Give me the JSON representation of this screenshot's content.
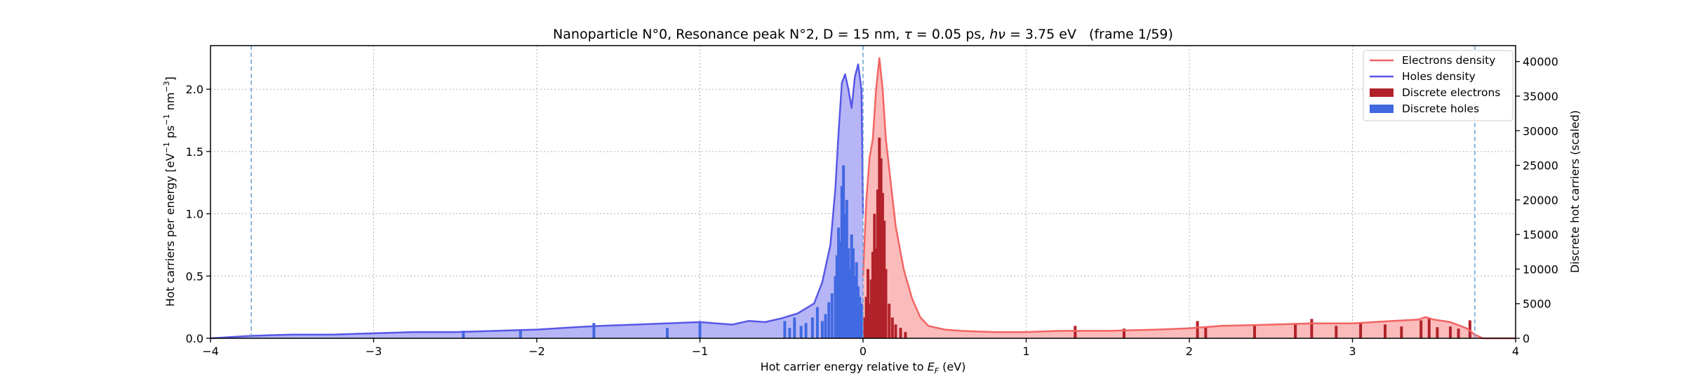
{
  "chart_data": {
    "type": "area",
    "title_parts": [
      "Nanoparticle N°0, Resonance peak N°2, D = 15 nm, ",
      "τ",
      " = 0.05 ps, ",
      "hν",
      " = 3.75 eV   (frame 1/59)"
    ],
    "xlabel_parts": [
      "Hot carrier energy relative to ",
      "E",
      "F",
      " (eV)"
    ],
    "ylabel_parts": [
      "Hot carriers per energy [eV",
      "−1",
      " ps",
      "−1",
      " nm",
      "−3",
      "]"
    ],
    "y2label": "Discrete hot carriers (scaled)",
    "xlim": [
      -4,
      4
    ],
    "ylim": [
      0,
      2.35
    ],
    "y2lim": [
      0,
      42300
    ],
    "xticks": [
      "−4",
      "−3",
      "−2",
      "−1",
      "0",
      "1",
      "2",
      "3",
      "4"
    ],
    "xtick_values": [
      -4,
      -3,
      -2,
      -1,
      0,
      1,
      2,
      3,
      4
    ],
    "yticks": [
      "0.0",
      "0.5",
      "1.0",
      "1.5",
      "2.0"
    ],
    "ytick_values": [
      0,
      0.5,
      1.0,
      1.5,
      2.0
    ],
    "y2ticks": [
      "0",
      "5000",
      "10000",
      "15000",
      "20000",
      "25000",
      "30000",
      "35000",
      "40000"
    ],
    "y2tick_values": [
      0,
      5000,
      10000,
      15000,
      20000,
      25000,
      30000,
      35000,
      40000
    ],
    "vlines": [
      -3.75,
      0,
      3.75
    ],
    "grid": true,
    "legend_position": "top-right",
    "legend": [
      "Electrons density",
      "Holes density",
      "Discrete electrons",
      "Discrete holes"
    ],
    "colors": {
      "electrons_line": "#f26464",
      "electrons_fill": "#fbb4b4",
      "holes_line": "#5757e6",
      "holes_fill": "#aeaef6",
      "discrete_electrons": "#b2222a",
      "discrete_holes": "#4169e1",
      "vline": "#6aa0cf"
    },
    "series": [
      {
        "name": "Holes density",
        "x": [
          -4.0,
          -3.75,
          -3.5,
          -3.25,
          -3.0,
          -2.75,
          -2.5,
          -2.25,
          -2.0,
          -1.75,
          -1.6,
          -1.4,
          -1.2,
          -1.0,
          -0.9,
          -0.8,
          -0.7,
          -0.6,
          -0.5,
          -0.4,
          -0.3,
          -0.25,
          -0.2,
          -0.17,
          -0.15,
          -0.13,
          -0.11,
          -0.09,
          -0.07,
          -0.05,
          -0.03,
          -0.01,
          0.0
        ],
        "y": [
          0.0,
          0.02,
          0.03,
          0.03,
          0.04,
          0.05,
          0.05,
          0.06,
          0.07,
          0.09,
          0.1,
          0.11,
          0.12,
          0.13,
          0.12,
          0.11,
          0.14,
          0.13,
          0.16,
          0.2,
          0.28,
          0.45,
          0.75,
          1.2,
          1.65,
          2.05,
          2.12,
          2.0,
          1.85,
          2.1,
          2.2,
          2.0,
          1.0
        ]
      },
      {
        "name": "Electrons density",
        "x": [
          0.0,
          0.02,
          0.04,
          0.06,
          0.08,
          0.1,
          0.12,
          0.14,
          0.17,
          0.2,
          0.25,
          0.3,
          0.35,
          0.4,
          0.5,
          0.6,
          0.8,
          1.0,
          1.2,
          1.5,
          1.8,
          2.0,
          2.2,
          2.5,
          2.75,
          3.0,
          3.25,
          3.4,
          3.45,
          3.5,
          3.6,
          3.7,
          3.75,
          3.8,
          4.0
        ],
        "y": [
          0.5,
          1.1,
          1.45,
          1.6,
          2.0,
          2.25,
          2.0,
          1.6,
          1.25,
          0.9,
          0.55,
          0.32,
          0.17,
          0.1,
          0.07,
          0.06,
          0.05,
          0.05,
          0.06,
          0.06,
          0.07,
          0.08,
          0.1,
          0.11,
          0.12,
          0.12,
          0.14,
          0.15,
          0.17,
          0.15,
          0.13,
          0.08,
          0.03,
          0.0,
          0.0
        ]
      }
    ],
    "discrete": [
      {
        "name": "Discrete holes",
        "x": [
          -0.48,
          -0.45,
          -0.42,
          -0.38,
          -0.35,
          -0.31,
          -0.28,
          -0.25,
          -0.23,
          -0.21,
          -0.19,
          -0.17,
          -0.16,
          -0.15,
          -0.14,
          -0.13,
          -0.12,
          -0.11,
          -0.1,
          -0.09,
          -0.08,
          -0.07,
          -0.06,
          -0.05,
          -0.04,
          -0.03,
          -0.02,
          -0.01,
          -1.0,
          -1.2,
          -1.65,
          -2.1,
          -2.45
        ],
        "y": [
          2500,
          1500,
          3000,
          1800,
          2200,
          3000,
          4500,
          2500,
          3500,
          5200,
          6500,
          9000,
          12000,
          16000,
          14000,
          22000,
          25000,
          18000,
          20000,
          13000,
          10000,
          15000,
          13000,
          9000,
          11000,
          7500,
          6000,
          5000,
          2500,
          1500,
          2200,
          1200,
          1100
        ]
      },
      {
        "name": "Discrete electrons",
        "x": [
          0.01,
          0.02,
          0.03,
          0.04,
          0.05,
          0.06,
          0.07,
          0.08,
          0.09,
          0.1,
          0.11,
          0.12,
          0.13,
          0.14,
          0.16,
          0.18,
          0.2,
          0.23,
          0.26,
          1.3,
          1.6,
          2.05,
          2.1,
          2.4,
          2.65,
          2.75,
          2.9,
          3.05,
          3.2,
          3.3,
          3.42,
          3.47,
          3.52,
          3.6,
          3.65,
          3.72
        ],
        "y": [
          3000,
          6000,
          10000,
          5000,
          8500,
          12500,
          18000,
          13000,
          21500,
          29000,
          26000,
          21000,
          17000,
          10000,
          5000,
          3000,
          2000,
          1500,
          900,
          1800,
          1400,
          2500,
          1600,
          1800,
          2200,
          2800,
          1800,
          2200,
          2000,
          1700,
          2600,
          2900,
          1600,
          1700,
          1400,
          2600
        ]
      }
    ]
  }
}
